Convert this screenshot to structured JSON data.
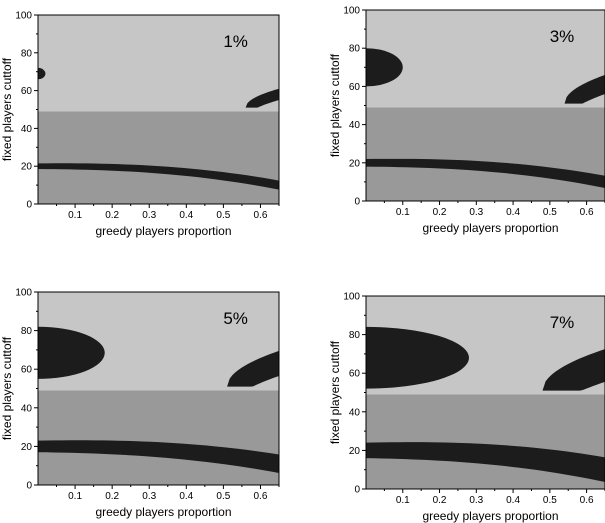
{
  "chart_data": [
    {
      "type": "heatmap",
      "panel_label": "1%",
      "xlabel": "greedy players proportion",
      "ylabel": "fixed players cuttoff",
      "xlim": [
        0,
        0.65
      ],
      "ylim": [
        0,
        100
      ],
      "xticks": [
        "0.1",
        "0.2",
        "0.3",
        "0.4",
        "0.5",
        "0.6"
      ],
      "yticks": [
        "0",
        "20",
        "40",
        "60",
        "80",
        "100"
      ],
      "split_y": 49,
      "colors": {
        "upper": "#c6c6c6",
        "lower": "#999999",
        "band": "#1c1c1c"
      },
      "regions": {
        "top_left_blob": {
          "x": [
            0.0,
            0.02
          ],
          "y": [
            66,
            72
          ]
        },
        "top_right_arc": {
          "x_start": 0.56,
          "y_start": 51,
          "y_end": 59,
          "thickness": 4
        },
        "lower_band": {
          "y_start": 20,
          "y_end": 10,
          "thickness": 3
        }
      }
    },
    {
      "type": "heatmap",
      "panel_label": "3%",
      "xlabel": "greedy players proportion",
      "ylabel": "fixed players cuttoff",
      "xlim": [
        0,
        0.65
      ],
      "ylim": [
        0,
        100
      ],
      "xticks": [
        "0.1",
        "0.2",
        "0.3",
        "0.4",
        "0.5",
        "0.6"
      ],
      "yticks": [
        "0",
        "20",
        "40",
        "60",
        "80",
        "100"
      ],
      "split_y": 49,
      "colors": {
        "upper": "#c6c6c6",
        "lower": "#999999",
        "band": "#1c1c1c"
      },
      "regions": {
        "top_left_blob": {
          "x": [
            0.0,
            0.1
          ],
          "y": [
            60,
            80
          ]
        },
        "top_right_arc": {
          "x_start": 0.54,
          "y_start": 51,
          "y_end": 62,
          "thickness": 8
        },
        "lower_band": {
          "y_start": 20,
          "y_end": 10,
          "thickness": 4
        }
      }
    },
    {
      "type": "heatmap",
      "panel_label": "5%",
      "xlabel": "greedy players proportion",
      "ylabel": "fixed players cuttoff",
      "xlim": [
        0,
        0.65
      ],
      "ylim": [
        0,
        100
      ],
      "xticks": [
        "0.1",
        "0.2",
        "0.3",
        "0.4",
        "0.5",
        "0.6"
      ],
      "yticks": [
        "0",
        "20",
        "40",
        "60",
        "80",
        "100"
      ],
      "split_y": 49,
      "colors": {
        "upper": "#c6c6c6",
        "lower": "#999999",
        "band": "#1c1c1c"
      },
      "regions": {
        "top_left_blob": {
          "x": [
            0.0,
            0.18
          ],
          "y": [
            55,
            82
          ]
        },
        "top_right_arc": {
          "x_start": 0.51,
          "y_start": 51,
          "y_end": 64,
          "thickness": 11
        },
        "lower_band": {
          "y_start": 20,
          "y_end": 11,
          "thickness": 6
        }
      }
    },
    {
      "type": "heatmap",
      "panel_label": "7%",
      "xlabel": "greedy players proportion",
      "ylabel": "fixed players cuttoff",
      "xlim": [
        0,
        0.65
      ],
      "ylim": [
        0,
        100
      ],
      "xticks": [
        "0.1",
        "0.2",
        "0.3",
        "0.4",
        "0.5",
        "0.6"
      ],
      "yticks": [
        "0",
        "20",
        "40",
        "60",
        "80",
        "100"
      ],
      "split_y": 49,
      "colors": {
        "upper": "#c6c6c6",
        "lower": "#999999",
        "band": "#1c1c1c"
      },
      "regions": {
        "top_left_blob": {
          "x": [
            0.0,
            0.28
          ],
          "y": [
            52,
            84
          ]
        },
        "top_right_arc": {
          "x_start": 0.48,
          "y_start": 51,
          "y_end": 65,
          "thickness": 15
        },
        "lower_band": {
          "y_start": 20,
          "y_end": 10,
          "thickness": 8
        }
      }
    }
  ]
}
